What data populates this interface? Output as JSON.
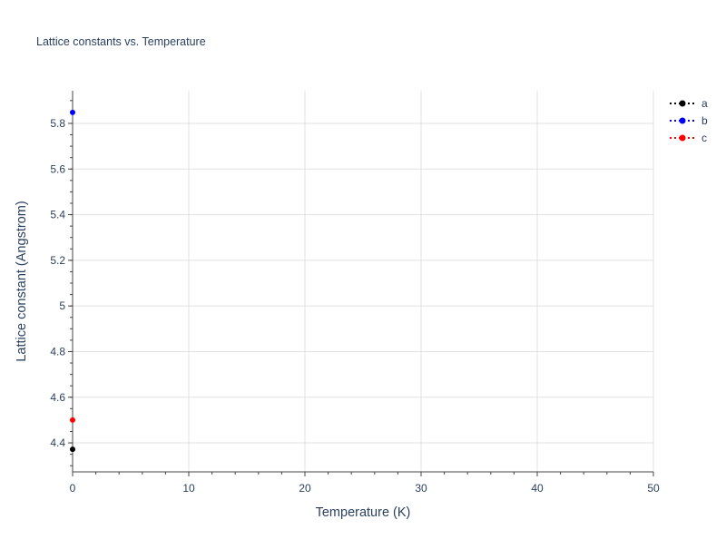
{
  "chart_data": {
    "type": "scatter",
    "mode": "lines+markers",
    "title": "Lattice constants vs. Temperature",
    "xlabel": "Temperature (K)",
    "ylabel": "Lattice constant (Angstrom)",
    "xlim": [
      0,
      50
    ],
    "ylim": [
      4.273,
      5.943
    ],
    "xticks": [
      0,
      10,
      20,
      30,
      40,
      50
    ],
    "xtick_labels": [
      "0",
      "10",
      "20",
      "30",
      "40",
      "50"
    ],
    "yticks": [
      4.4,
      4.6,
      4.8,
      5.0,
      5.2,
      5.4,
      5.6,
      5.8
    ],
    "ytick_labels": [
      "4.4",
      "4.6",
      "4.8",
      "5",
      "5.2",
      "5.4",
      "5.6",
      "5.8"
    ],
    "grid": true,
    "legend_placement": "top-right",
    "series": [
      {
        "name": "a",
        "color": "#000000",
        "line": "dotted",
        "x": [
          0
        ],
        "y": [
          4.372
        ]
      },
      {
        "name": "b",
        "color": "#0000ff",
        "line": "dotted",
        "x": [
          0
        ],
        "y": [
          5.848
        ]
      },
      {
        "name": "c",
        "color": "#ff0000",
        "line": "dotted",
        "x": [
          0
        ],
        "y": [
          4.5
        ]
      }
    ]
  }
}
